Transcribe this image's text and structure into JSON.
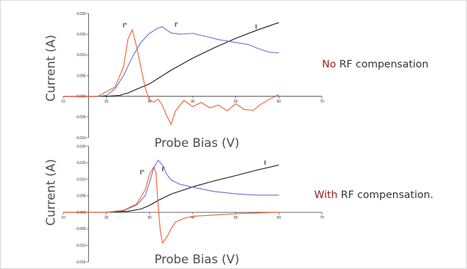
{
  "chart_data": [
    {
      "type": "line",
      "title": "",
      "caption_accent": "No",
      "caption_rest": " RF compensation",
      "xlabel": "Probe Bias (V)",
      "ylabel": "Current (A)",
      "xlim": [
        10,
        70
      ],
      "ylim": [
        -0.01,
        0.02
      ],
      "xticks": [
        "10",
        "20",
        "30",
        "40",
        "50",
        "60",
        "70"
      ],
      "yticks": [
        "0.020",
        "0.015",
        "0.010",
        "0.005",
        "0.000",
        "-0.005",
        "-0.010"
      ],
      "grid": false,
      "series": [
        {
          "name": "I",
          "color": "#111111",
          "points": [
            [
              10,
              0
            ],
            [
              20,
              0
            ],
            [
              23,
              0.0002
            ],
            [
              25,
              0.0008
            ],
            [
              27,
              0.0017
            ],
            [
              30,
              0.003
            ],
            [
              35,
              0.0063
            ],
            [
              40,
              0.0092
            ],
            [
              45,
              0.0117
            ],
            [
              50,
              0.014
            ],
            [
              55,
              0.016
            ],
            [
              60,
              0.0178
            ]
          ]
        },
        {
          "name": "I'",
          "color": "#6b6bd6",
          "points": [
            [
              10,
              0
            ],
            [
              18,
              0
            ],
            [
              20,
              0.0002
            ],
            [
              22,
              0.0018
            ],
            [
              24,
              0.005
            ],
            [
              26,
              0.0095
            ],
            [
              28,
              0.013
            ],
            [
              30,
              0.0152
            ],
            [
              32,
              0.0165
            ],
            [
              33,
              0.0168
            ],
            [
              34,
              0.016
            ],
            [
              35,
              0.0153
            ],
            [
              37,
              0.015
            ],
            [
              40,
              0.0152
            ],
            [
              43,
              0.0145
            ],
            [
              46,
              0.0137
            ],
            [
              50,
              0.013
            ],
            [
              53,
              0.0125
            ],
            [
              55,
              0.0116
            ],
            [
              57,
              0.0109
            ],
            [
              58,
              0.0106
            ],
            [
              60,
              0.0105
            ]
          ]
        },
        {
          "name": "I\"",
          "color": "#f05a28",
          "points": [
            [
              10,
              0
            ],
            [
              15,
              0
            ],
            [
              18,
              0
            ],
            [
              19,
              0.0006
            ],
            [
              22,
              0.0022
            ],
            [
              24,
              0.0072
            ],
            [
              25,
              0.0138
            ],
            [
              26,
              0.0161
            ],
            [
              27,
              0.012
            ],
            [
              28,
              0.007
            ],
            [
              29,
              0.002
            ],
            [
              30,
              -0.001
            ],
            [
              31,
              -0.0014
            ],
            [
              32,
              -0.0007
            ],
            [
              33,
              -0.0022
            ],
            [
              34,
              -0.0047
            ],
            [
              35,
              -0.0068
            ],
            [
              36,
              -0.0036
            ],
            [
              37,
              -0.0022
            ],
            [
              38,
              -0.001
            ],
            [
              40,
              -0.0025
            ],
            [
              42,
              -0.0015
            ],
            [
              44,
              -0.0028
            ],
            [
              46,
              -0.0021
            ],
            [
              48,
              -0.0035
            ],
            [
              50,
              -0.0018
            ],
            [
              52,
              -0.0032
            ],
            [
              54,
              -0.0034
            ],
            [
              56,
              -0.0018
            ],
            [
              58,
              -0.0006
            ],
            [
              60,
              0.0004
            ]
          ]
        }
      ],
      "curve_labels": [
        {
          "text": "I\"",
          "x": 24.3,
          "y": 0.0167
        },
        {
          "text": "I'",
          "x": 36.2,
          "y": 0.0168
        },
        {
          "text": "I",
          "x": 54.7,
          "y": 0.0163
        }
      ]
    },
    {
      "type": "line",
      "title": "",
      "caption_accent": "With",
      "caption_rest": " RF compensation.",
      "xlabel": "Probe Bias (V)",
      "ylabel": "Current (A)",
      "xlim": [
        10,
        70
      ],
      "ylim": [
        -0.015,
        0.02
      ],
      "xticks": [
        "10",
        "20",
        "30",
        "40",
        "50",
        "60",
        "70"
      ],
      "yticks": [
        "0.020",
        "0.015",
        "0.010",
        "0.005",
        "0.000",
        "-0.005",
        "-0.010",
        "-0.015"
      ],
      "grid": false,
      "series": [
        {
          "name": "I",
          "color": "#111111",
          "points": [
            [
              10,
              0
            ],
            [
              20,
              0
            ],
            [
              25,
              0.0003
            ],
            [
              28,
              0.001
            ],
            [
              30,
              0.0021
            ],
            [
              32,
              0.0036
            ],
            [
              35,
              0.0055
            ],
            [
              40,
              0.0077
            ],
            [
              45,
              0.0095
            ],
            [
              50,
              0.0111
            ],
            [
              55,
              0.0128
            ],
            [
              60,
              0.0143
            ]
          ]
        },
        {
          "name": "I'",
          "color": "#6b6bd6",
          "points": [
            [
              10,
              0
            ],
            [
              20,
              0
            ],
            [
              24,
              0.0005
            ],
            [
              27,
              0.0022
            ],
            [
              29,
              0.005
            ],
            [
              30,
              0.009
            ],
            [
              31,
              0.0135
            ],
            [
              32,
              0.0158
            ],
            [
              33,
              0.0143
            ],
            [
              34,
              0.0115
            ],
            [
              35,
              0.0098
            ],
            [
              37,
              0.0085
            ],
            [
              40,
              0.0076
            ],
            [
              45,
              0.0063
            ],
            [
              50,
              0.0056
            ],
            [
              55,
              0.0052
            ],
            [
              60,
              0.0052
            ]
          ]
        },
        {
          "name": "I\"",
          "color": "#f05a28",
          "points": [
            [
              10,
              0
            ],
            [
              20,
              0
            ],
            [
              24,
              0.0006
            ],
            [
              27,
              0.0025
            ],
            [
              29,
              0.0068
            ],
            [
              30,
              0.0115
            ],
            [
              31,
              0.0138
            ],
            [
              31.5,
              0.012
            ],
            [
              32,
              0.002
            ],
            [
              32.5,
              -0.0055
            ],
            [
              33,
              -0.0093
            ],
            [
              34,
              -0.0075
            ],
            [
              35,
              -0.005
            ],
            [
              36,
              -0.003
            ],
            [
              38,
              -0.0018
            ],
            [
              40,
              -0.0012
            ],
            [
              45,
              -0.0008
            ],
            [
              50,
              -0.0004
            ],
            [
              55,
              -0.0002
            ],
            [
              60,
              0
            ]
          ]
        }
      ],
      "curve_labels": [
        {
          "text": "I\"",
          "x": 28.3,
          "y": 0.0115
        },
        {
          "text": "I'",
          "x": 33.2,
          "y": 0.0124
        },
        {
          "text": "I",
          "x": 56.8,
          "y": 0.0144
        }
      ]
    }
  ]
}
